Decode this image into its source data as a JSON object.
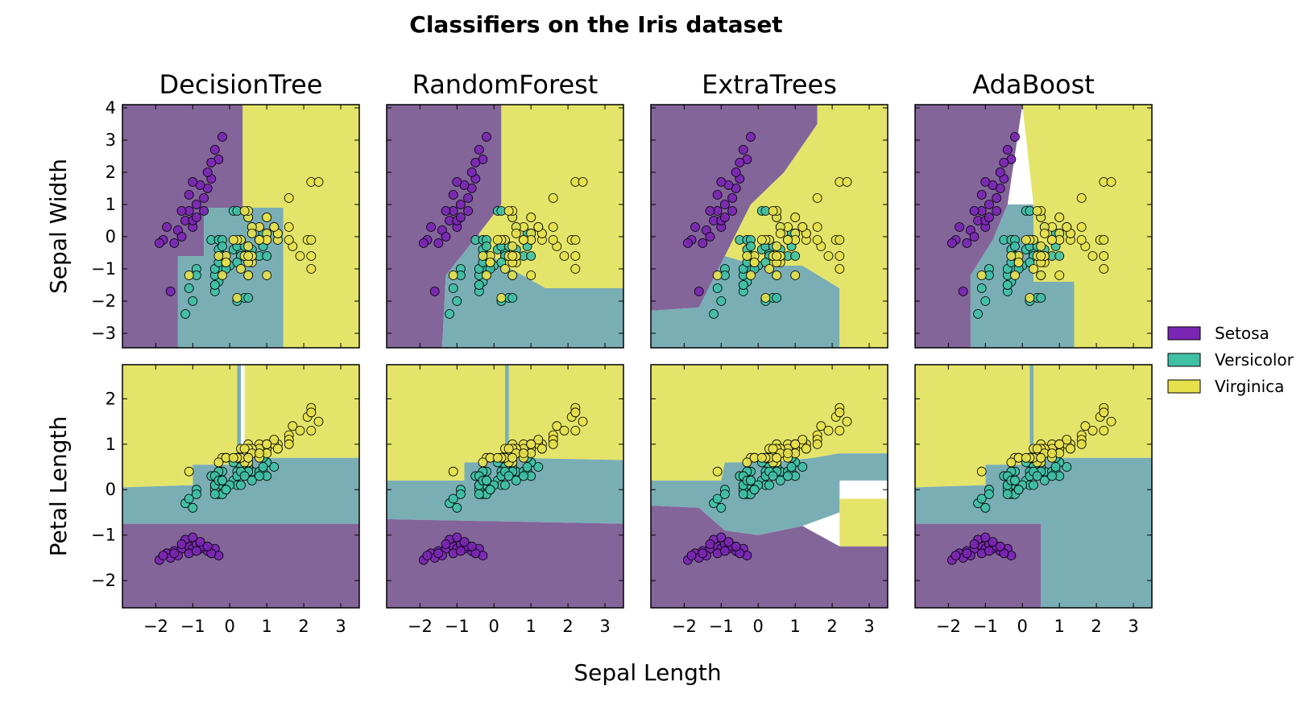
{
  "chart_data": {
    "type": "scatter",
    "title": "Classifiers on the Iris dataset",
    "xlabel": "Sepal Length",
    "row_labels": [
      "Sepal Width",
      "Petal Length"
    ],
    "column_titles": [
      "DecisionTree",
      "RandomForest",
      "ExtraTrees",
      "AdaBoost"
    ],
    "xlim": [
      -2.9,
      3.5
    ],
    "xticks": [
      "−2",
      "−1",
      "0",
      "1",
      "2",
      "3"
    ],
    "xtick_values": [
      -2,
      -1,
      0,
      1,
      2,
      3
    ],
    "rows": [
      {
        "ylabel": "Sepal Width",
        "ylim": [
          -3.45,
          4.1
        ],
        "yticks": [
          "−3",
          "−2",
          "−1",
          "0",
          "1",
          "2",
          "3",
          "4"
        ],
        "ytick_values": [
          -3,
          -2,
          -1,
          0,
          1,
          2,
          3,
          4
        ]
      },
      {
        "ylabel": "Petal Length",
        "ylim": [
          -2.6,
          2.75
        ],
        "yticks": [
          "−2",
          "−1",
          "0",
          "1",
          "2"
        ],
        "ytick_values": [
          -2,
          -1,
          0,
          1,
          2
        ]
      }
    ],
    "classes": [
      {
        "name": "Setosa",
        "color": "#7a25b4",
        "region_color": "#83659a"
      },
      {
        "name": "Versicolor",
        "color": "#3fc0a5",
        "region_color": "#7aaeb5"
      },
      {
        "name": "Virginica",
        "color": "#e6e04c",
        "region_color": "#e4e46a"
      }
    ],
    "legend_placement": "right",
    "grid": false,
    "series": [
      {
        "name": "Setosa",
        "points_sepal_width": [
          [
            -1.8,
            -0.1
          ],
          [
            -1.4,
            0.2
          ],
          [
            -1.1,
            0.8
          ],
          [
            -1.0,
            0.3
          ],
          [
            -0.9,
            1.0
          ],
          [
            -0.7,
            1.2
          ],
          [
            -0.6,
            1.5
          ],
          [
            -1.2,
            0.5
          ],
          [
            -0.5,
            1.8
          ],
          [
            -0.3,
            2.4
          ],
          [
            -0.4,
            2.7
          ],
          [
            -0.2,
            3.1
          ],
          [
            -1.5,
            -0.2
          ],
          [
            -1.0,
            0.5
          ],
          [
            -1.3,
            0.0
          ],
          [
            -0.8,
            1.6
          ],
          [
            -0.6,
            2.0
          ],
          [
            -1.7,
            0.3
          ],
          [
            -1.1,
            1.3
          ],
          [
            -0.9,
            0.6
          ],
          [
            -1.3,
            0.8
          ],
          [
            -1.6,
            -1.7
          ],
          [
            -0.7,
            0.8
          ],
          [
            -1.0,
            1.7
          ],
          [
            -0.5,
            2.3
          ],
          [
            -1.9,
            -0.2
          ]
        ],
        "points_petal_length": [
          [
            -1.9,
            -1.55
          ],
          [
            -1.7,
            -1.4
          ],
          [
            -1.5,
            -1.35
          ],
          [
            -1.3,
            -1.3
          ],
          [
            -1.1,
            -1.25
          ],
          [
            -1.0,
            -1.3
          ],
          [
            -0.9,
            -1.2
          ],
          [
            -0.8,
            -1.3
          ],
          [
            -0.6,
            -1.35
          ],
          [
            -0.4,
            -1.3
          ],
          [
            -0.3,
            -1.45
          ],
          [
            -1.2,
            -1.1
          ],
          [
            -1.0,
            -1.05
          ],
          [
            -1.4,
            -1.45
          ],
          [
            -1.6,
            -1.5
          ],
          [
            -0.7,
            -1.25
          ],
          [
            -0.5,
            -1.4
          ],
          [
            -1.1,
            -1.4
          ],
          [
            -0.9,
            -1.35
          ],
          [
            -1.3,
            -1.2
          ],
          [
            -0.8,
            -1.15
          ],
          [
            -1.5,
            -1.4
          ],
          [
            -1.8,
            -1.45
          ],
          [
            -0.6,
            -1.25
          ]
        ]
      },
      {
        "name": "Versicolor",
        "points_sepal_width": [
          [
            1.2,
            0.3
          ],
          [
            0.6,
            0.3
          ],
          [
            1.0,
            0.1
          ],
          [
            -0.4,
            -1.7
          ],
          [
            0.8,
            -0.6
          ],
          [
            -0.2,
            -0.6
          ],
          [
            0.5,
            0.6
          ],
          [
            -1.2,
            -2.4
          ],
          [
            0.9,
            -0.3
          ],
          [
            -0.9,
            -1.0
          ],
          [
            -1.1,
            -1.6
          ],
          [
            0.1,
            -0.4
          ],
          [
            0.2,
            -2.0
          ],
          [
            0.3,
            -0.5
          ],
          [
            -0.3,
            -0.4
          ],
          [
            1.0,
            0.1
          ],
          [
            -0.3,
            -0.1
          ],
          [
            0.0,
            -0.9
          ],
          [
            0.4,
            -1.9
          ],
          [
            -0.3,
            -1.4
          ],
          [
            0.1,
            0.8
          ],
          [
            0.3,
            -0.6
          ],
          [
            0.5,
            -1.2
          ],
          [
            0.3,
            -0.6
          ],
          [
            0.6,
            -0.4
          ],
          [
            0.8,
            -0.1
          ],
          [
            1.0,
            -0.6
          ],
          [
            0.9,
            0.0
          ],
          [
            0.2,
            -0.3
          ],
          [
            -0.2,
            -1.0
          ],
          [
            -0.4,
            -1.5
          ],
          [
            -0.4,
            -1.5
          ],
          [
            -0.1,
            -0.8
          ],
          [
            0.2,
            -0.8
          ],
          [
            -0.5,
            -0.1
          ],
          [
            0.2,
            0.8
          ],
          [
            0.9,
            0.1
          ],
          [
            0.5,
            -1.9
          ],
          [
            -0.3,
            -0.1
          ],
          [
            -0.4,
            -1.2
          ],
          [
            -0.4,
            -1.0
          ],
          [
            0.3,
            -0.1
          ],
          [
            -0.1,
            -1.0
          ],
          [
            -1.0,
            -2.0
          ],
          [
            -0.3,
            -0.8
          ],
          [
            -0.2,
            -0.1
          ],
          [
            -0.2,
            -0.3
          ],
          [
            0.4,
            -0.3
          ],
          [
            -0.9,
            -1.2
          ],
          [
            -0.2,
            -0.6
          ]
        ],
        "points_petal_length": [
          [
            1.2,
            0.5
          ],
          [
            0.6,
            0.4
          ],
          [
            1.0,
            0.6
          ],
          [
            -0.4,
            0.1
          ],
          [
            0.8,
            0.4
          ],
          [
            -0.2,
            0.4
          ],
          [
            0.5,
            0.5
          ],
          [
            -1.2,
            -0.3
          ],
          [
            0.9,
            0.4
          ],
          [
            -0.9,
            0.0
          ],
          [
            -1.1,
            -0.2
          ],
          [
            0.1,
            0.2
          ],
          [
            0.2,
            0.1
          ],
          [
            0.3,
            0.5
          ],
          [
            -0.3,
            -0.1
          ],
          [
            1.0,
            0.3
          ],
          [
            -0.3,
            0.4
          ],
          [
            0.0,
            0.1
          ],
          [
            0.4,
            0.4
          ],
          [
            -0.3,
            0.1
          ],
          [
            0.1,
            0.6
          ],
          [
            0.3,
            0.1
          ],
          [
            0.5,
            0.6
          ],
          [
            0.3,
            0.5
          ],
          [
            0.6,
            0.2
          ],
          [
            0.8,
            0.3
          ],
          [
            1.0,
            0.6
          ],
          [
            0.9,
            0.7
          ],
          [
            0.2,
            0.4
          ],
          [
            -0.2,
            -0.1
          ],
          [
            -0.4,
            0.0
          ],
          [
            -0.4,
            -0.1
          ],
          [
            -0.1,
            0.0
          ],
          [
            0.2,
            0.7
          ],
          [
            -0.5,
            0.3
          ],
          [
            0.2,
            0.3
          ],
          [
            0.9,
            0.5
          ],
          [
            0.5,
            0.4
          ],
          [
            -0.3,
            0.2
          ],
          [
            -0.4,
            0.1
          ],
          [
            -0.4,
            0.3
          ],
          [
            0.3,
            0.4
          ],
          [
            -0.1,
            0.0
          ],
          [
            -1.0,
            -0.4
          ],
          [
            -0.3,
            0.2
          ],
          [
            -0.2,
            0.2
          ],
          [
            -0.2,
            0.2
          ],
          [
            0.4,
            0.3
          ],
          [
            -0.9,
            -0.1
          ],
          [
            -0.2,
            0.2
          ]
        ]
      },
      {
        "name": "Virginica",
        "points_sepal_width": [
          [
            0.5,
            0.6
          ],
          [
            -0.1,
            -0.8
          ],
          [
            1.3,
            -0.1
          ],
          [
            0.5,
            -0.3
          ],
          [
            0.8,
            -0.1
          ],
          [
            2.1,
            -0.1
          ],
          [
            -1.1,
            -1.2
          ],
          [
            1.7,
            -0.3
          ],
          [
            1.0,
            -1.2
          ],
          [
            1.6,
            1.2
          ],
          [
            0.8,
            0.3
          ],
          [
            0.6,
            -0.8
          ],
          [
            1.0,
            -0.1
          ],
          [
            -0.2,
            -1.2
          ],
          [
            -0.1,
            -0.6
          ],
          [
            0.6,
            0.3
          ],
          [
            0.8,
            -0.1
          ],
          [
            2.2,
            1.7
          ],
          [
            2.2,
            -1.0
          ],
          [
            0.2,
            -1.9
          ],
          [
            1.2,
            0.3
          ],
          [
            -0.3,
            -0.6
          ],
          [
            2.2,
            -0.6
          ],
          [
            0.5,
            -0.8
          ],
          [
            1.0,
            0.6
          ],
          [
            1.6,
            0.3
          ],
          [
            0.4,
            -0.6
          ],
          [
            0.3,
            -0.1
          ],
          [
            0.6,
            -0.6
          ],
          [
            1.6,
            -0.1
          ],
          [
            1.9,
            -0.6
          ],
          [
            2.4,
            1.7
          ],
          [
            0.6,
            -0.6
          ],
          [
            0.5,
            -0.6
          ],
          [
            0.3,
            -1.0
          ],
          [
            2.2,
            -0.1
          ],
          [
            0.5,
            0.8
          ],
          [
            0.6,
            0.1
          ],
          [
            0.2,
            -0.1
          ],
          [
            1.3,
            0.1
          ],
          [
            1.0,
            0.1
          ],
          [
            1.3,
            0.1
          ],
          [
            -0.1,
            -0.8
          ],
          [
            1.2,
            0.3
          ],
          [
            1.0,
            0.6
          ],
          [
            1.0,
            -0.1
          ],
          [
            0.5,
            -1.2
          ],
          [
            0.8,
            -0.1
          ],
          [
            0.4,
            0.8
          ],
          [
            0.1,
            -0.1
          ]
        ],
        "points_petal_length": [
          [
            0.5,
            1.0
          ],
          [
            -0.1,
            0.7
          ],
          [
            1.3,
            1.0
          ],
          [
            0.5,
            0.9
          ],
          [
            0.8,
            1.0
          ],
          [
            2.1,
            1.6
          ],
          [
            -1.1,
            0.4
          ],
          [
            1.7,
            1.4
          ],
          [
            1.0,
            1.0
          ],
          [
            1.6,
            1.2
          ],
          [
            0.8,
            0.7
          ],
          [
            0.6,
            0.8
          ],
          [
            1.0,
            0.9
          ],
          [
            -0.2,
            0.7
          ],
          [
            -0.1,
            0.7
          ],
          [
            0.6,
            0.8
          ],
          [
            0.8,
            0.9
          ],
          [
            2.2,
            1.7
          ],
          [
            2.2,
            1.8
          ],
          [
            0.2,
            0.7
          ],
          [
            1.2,
            1.0
          ],
          [
            -0.3,
            0.6
          ],
          [
            2.2,
            1.7
          ],
          [
            0.5,
            0.6
          ],
          [
            1.0,
            1.0
          ],
          [
            1.6,
            1.1
          ],
          [
            0.4,
            0.6
          ],
          [
            0.3,
            0.7
          ],
          [
            0.6,
            0.9
          ],
          [
            1.6,
            1.0
          ],
          [
            1.9,
            1.3
          ],
          [
            2.4,
            1.5
          ],
          [
            0.6,
            0.9
          ],
          [
            0.5,
            0.7
          ],
          [
            0.3,
            0.9
          ],
          [
            2.2,
            1.3
          ],
          [
            0.5,
            0.9
          ],
          [
            0.6,
            0.8
          ],
          [
            0.2,
            0.7
          ],
          [
            1.3,
            0.9
          ],
          [
            1.0,
            1.0
          ],
          [
            1.3,
            0.9
          ],
          [
            -0.1,
            0.7
          ],
          [
            1.2,
            1.1
          ],
          [
            1.0,
            1.0
          ],
          [
            1.0,
            0.8
          ],
          [
            0.5,
            0.7
          ],
          [
            0.8,
            0.8
          ],
          [
            0.4,
            0.9
          ],
          [
            0.1,
            0.7
          ]
        ]
      }
    ]
  }
}
